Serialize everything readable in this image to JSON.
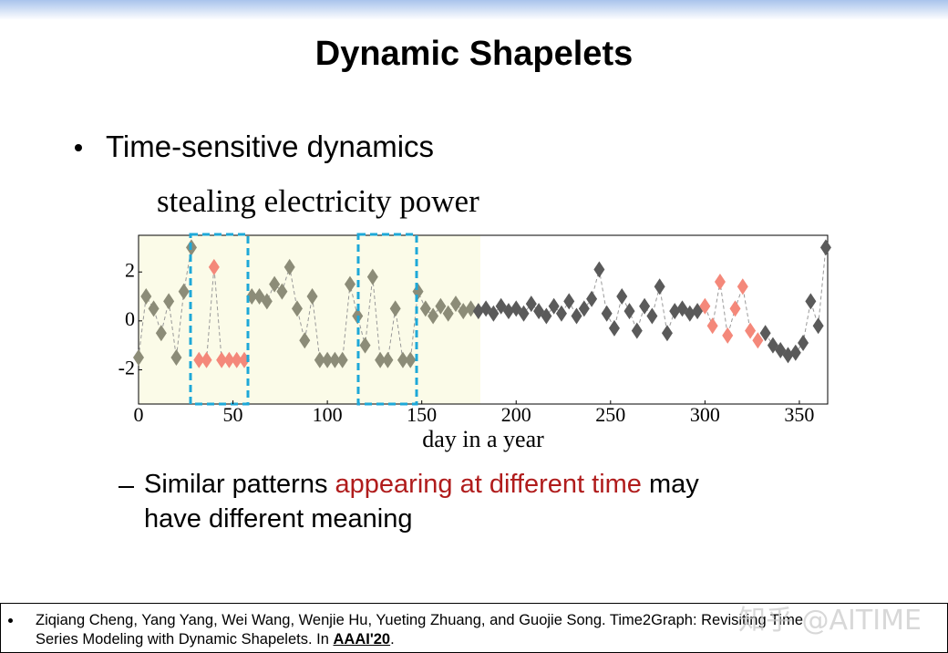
{
  "slide": {
    "title": "Dynamic Shapelets",
    "bullet": "Time-sensitive dynamics",
    "sub_bullet": [
      "Similar patterns ",
      "appearing at different time",
      " may",
      "have different meaning"
    ],
    "reference": [
      "Ziqiang Cheng, Yang Yang, Wei Wang, Wenjie Hu, Yueting Zhuang, and Guojie Song. Time2Graph: Revisiting Time",
      "Series Modeling with Dynamic Shapelets. In ",
      "AAAI'20",
      "."
    ],
    "watermark": "知乎 @AITIME"
  },
  "chart_data": {
    "type": "scatter",
    "title": "stealing electricity power",
    "xlabel": "day in a year",
    "xlim": [
      0,
      365
    ],
    "xticks": [
      0,
      50,
      100,
      150,
      200,
      250,
      300,
      350
    ],
    "ylim": [
      -3.4,
      3.5
    ],
    "yticks": [
      2,
      0,
      -2
    ],
    "series": [
      {
        "color": "#8c8c78",
        "x": [
          0,
          4,
          8,
          12,
          16,
          20,
          24,
          28
        ],
        "values": [
          -1.5,
          1,
          0.5,
          -0.5,
          0.8,
          -1.5,
          1.2,
          3
        ]
      },
      {
        "color": "#f4887a",
        "x": [
          32,
          36,
          40,
          44,
          48,
          52,
          56
        ],
        "values": [
          -1.6,
          -1.6,
          2.2,
          -1.6,
          -1.6,
          -1.6,
          -1.6
        ]
      },
      {
        "color": "#8c8c78",
        "x": [
          60,
          64,
          68,
          72,
          76,
          80,
          84,
          88,
          92,
          96,
          100,
          104,
          108,
          112,
          116,
          120,
          124,
          128,
          132,
          136,
          140,
          144,
          148,
          152,
          156,
          160,
          164,
          168,
          172,
          176
        ],
        "values": [
          1,
          1,
          0.8,
          1.5,
          1.2,
          2.2,
          0.5,
          -0.8,
          1,
          -1.6,
          -1.6,
          -1.6,
          -1.6,
          1.5,
          0.2,
          -1,
          1.8,
          -1.6,
          -1.6,
          0.5,
          -1.6,
          -1.6,
          1.2,
          0.5,
          0.2,
          0.6,
          0.3,
          0.7,
          0.4,
          0.5
        ]
      },
      {
        "color": "#5a5a5a",
        "x": [
          180,
          184,
          188,
          192,
          196,
          200,
          204,
          208,
          212,
          216,
          220,
          224,
          228,
          232,
          236,
          240,
          244,
          248,
          252,
          256,
          260,
          264,
          268,
          272,
          276,
          280,
          284,
          288,
          292,
          296
        ],
        "values": [
          0.4,
          0.5,
          0.3,
          0.6,
          0.4,
          0.5,
          0.3,
          0.7,
          0.4,
          0.2,
          0.6,
          0.3,
          0.8,
          0.2,
          0.5,
          0.9,
          2.1,
          0.3,
          -0.3,
          1,
          0.4,
          -0.4,
          0.6,
          0.2,
          1.4,
          -0.5,
          0.4,
          0.5,
          0.3,
          0.4
        ]
      },
      {
        "color": "#f4887a",
        "x": [
          300,
          304,
          308,
          312,
          316,
          320,
          324,
          328
        ],
        "values": [
          0.6,
          -0.2,
          1.6,
          -0.6,
          0.5,
          1.4,
          -0.4,
          -0.8
        ]
      },
      {
        "color": "#5a5a5a",
        "x": [
          332,
          336,
          340,
          344,
          348,
          352,
          356,
          360,
          364
        ],
        "values": [
          -0.5,
          -1,
          -1.2,
          -1.4,
          -1.3,
          -0.9,
          0.8,
          -0.2,
          3
        ]
      }
    ]
  }
}
